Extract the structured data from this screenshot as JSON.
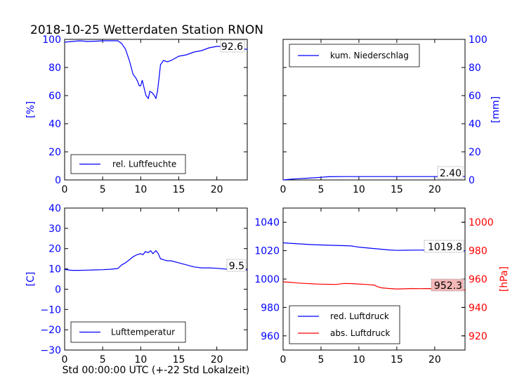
{
  "page": {
    "title": "2018-10-25 Wetterdaten Station RNON",
    "xlabel": "Std 00:00:00 UTC (+-22 Std Lokalzeit)"
  },
  "chart_data": [
    {
      "id": "humidity",
      "type": "line",
      "title": "",
      "xlim": [
        0,
        24
      ],
      "x_ticks": [
        0,
        5,
        10,
        15,
        20
      ],
      "ylim": [
        0,
        100
      ],
      "y_ticks": [
        0,
        20,
        40,
        60,
        80,
        100
      ],
      "ylabel": "[%]",
      "ylabel_side": "left",
      "axis_color": "#0000ff",
      "legend": "bottom-left",
      "grid": false,
      "annotation": {
        "text": "92.6",
        "color": "#ffffff"
      },
      "series": [
        {
          "name": "rel. Luftfeuchte",
          "color": "#0000ff",
          "x": [
            0,
            1,
            2,
            3,
            4,
            5,
            6,
            7,
            7.5,
            8,
            8.5,
            9,
            9.3,
            9.6,
            9.8,
            10,
            10.2,
            10.5,
            10.7,
            11,
            11.2,
            11.5,
            11.8,
            12,
            12.2,
            12.4,
            12.6,
            13,
            13.5,
            14,
            15,
            16,
            17,
            18,
            19,
            20,
            21,
            22,
            23,
            24
          ],
          "y": [
            98,
            98.5,
            99,
            98.5,
            98.7,
            99,
            99,
            99,
            97,
            93,
            85,
            75,
            73,
            70,
            67,
            67,
            71,
            64,
            60,
            58,
            63,
            62,
            60,
            58,
            63,
            72,
            82,
            85,
            84,
            85,
            88,
            89,
            91,
            92,
            94,
            95,
            95,
            94,
            93,
            93
          ]
        }
      ]
    },
    {
      "id": "precipitation",
      "type": "line",
      "title": "",
      "xlim": [
        0,
        24
      ],
      "x_ticks": [
        0,
        5,
        10,
        15,
        20
      ],
      "ylim": [
        0,
        100
      ],
      "y_ticks": [
        0,
        20,
        40,
        60,
        80,
        100
      ],
      "ylabel": "[mm]",
      "ylabel_side": "right",
      "axis_color": "#0000ff",
      "legend": "top-left",
      "grid": false,
      "annotation": {
        "text": "2.40",
        "color": "#ffffff"
      },
      "series": [
        {
          "name": "kum. Niederschlag",
          "color": "#0000ff",
          "x": [
            0,
            1,
            2,
            3,
            4,
            5,
            6,
            8,
            10,
            12,
            14,
            16,
            18,
            20,
            22,
            24
          ],
          "y": [
            0,
            0.5,
            0.9,
            1.2,
            1.5,
            1.9,
            2.3,
            2.4,
            2.4,
            2.4,
            2.4,
            2.4,
            2.4,
            2.4,
            2.4,
            2.4
          ]
        }
      ]
    },
    {
      "id": "temperature",
      "type": "line",
      "title": "",
      "xlim": [
        0,
        24
      ],
      "x_ticks": [
        0,
        5,
        10,
        15,
        20
      ],
      "ylim": [
        -30,
        40
      ],
      "y_ticks": [
        -30,
        -20,
        -10,
        0,
        10,
        20,
        30,
        40
      ],
      "ylabel": "[C]",
      "ylabel_side": "left",
      "axis_color": "#0000ff",
      "legend": "bottom-left",
      "grid": false,
      "annotation": {
        "text": "9.5",
        "color": "#ffffff"
      },
      "series": [
        {
          "name": "Lufttemperatur",
          "color": "#0000ff",
          "x": [
            0,
            0.5,
            1,
            2,
            3,
            4,
            5,
            6,
            7,
            7.5,
            8,
            8.5,
            9,
            9.5,
            10,
            10.3,
            10.6,
            11,
            11.3,
            11.6,
            12,
            12.3,
            12.6,
            13,
            13.5,
            14,
            15,
            16,
            17,
            18,
            19,
            20,
            21,
            22,
            23,
            24
          ],
          "y": [
            9.7,
            9.5,
            9.3,
            9.3,
            9.4,
            9.5,
            9.6,
            9.8,
            10.2,
            12,
            13,
            14.5,
            16,
            17,
            17.5,
            17,
            18.5,
            18,
            19,
            17.5,
            19,
            17.5,
            15,
            14.5,
            14,
            14,
            13,
            12,
            11,
            10.5,
            10.5,
            10.3,
            10,
            9.8,
            9.6,
            9.5
          ]
        }
      ]
    },
    {
      "id": "pressure",
      "type": "line",
      "title": "",
      "xlim": [
        0,
        24
      ],
      "x_ticks": [
        0,
        5,
        10,
        15,
        20
      ],
      "ylim": [
        950,
        1050
      ],
      "y_ticks": [
        960,
        980,
        1000,
        1020,
        1040
      ],
      "ylabel": "",
      "axis_color": "#0000ff",
      "y2lim": [
        910,
        1010
      ],
      "y2_ticks": [
        920,
        940,
        960,
        980,
        1000
      ],
      "y2label": "[hPa]",
      "y2_color": "#ff0000",
      "legend": "bottom-left",
      "grid": false,
      "annotations": [
        {
          "text": "1019.8",
          "color": "#ffffff"
        },
        {
          "text": "952.3",
          "color": "#f4b8b8"
        }
      ],
      "series": [
        {
          "name": "red. Luftdruck",
          "color": "#0000ff",
          "axis": "left",
          "x": [
            0,
            2,
            4,
            6,
            8,
            9,
            10,
            11,
            12,
            13,
            14,
            15,
            16,
            18,
            20,
            22,
            24
          ],
          "y": [
            1025.5,
            1024.8,
            1024.2,
            1023.8,
            1023.5,
            1023.3,
            1022.5,
            1022,
            1021.5,
            1021,
            1020.5,
            1020.2,
            1020.3,
            1020.4,
            1020.3,
            1020,
            1019.8
          ]
        },
        {
          "name": "abs. Luftdruck",
          "color": "#ff0000",
          "axis": "right",
          "x": [
            0,
            1,
            2,
            3,
            4,
            5,
            6,
            7,
            8,
            9,
            10,
            11,
            12,
            12.5,
            13,
            14,
            15,
            16,
            17,
            18,
            19,
            20,
            21,
            22,
            23,
            24
          ],
          "y": [
            958,
            957.7,
            957.2,
            956.9,
            956.6,
            956.4,
            956.3,
            956.2,
            956.9,
            956.8,
            956.5,
            956.2,
            955.8,
            954.5,
            953.8,
            953.3,
            953,
            953.1,
            953.3,
            953.2,
            953.3,
            953.2,
            953,
            952.8,
            952.5,
            952.3
          ]
        }
      ]
    }
  ]
}
